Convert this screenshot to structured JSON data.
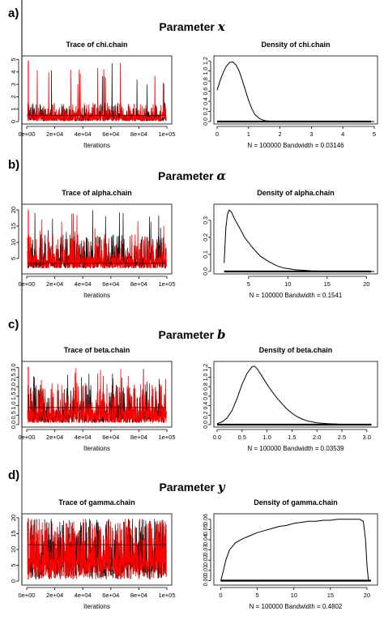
{
  "panels": [
    {
      "id": "a",
      "label": "a)",
      "title_prefix": "Parameter",
      "title_symbol": "x",
      "trace": {
        "title": "Trace of chi.chain",
        "xlabel": "Iterations",
        "xticks": [
          "0e+00",
          "2e+04",
          "4e+04",
          "6e+04",
          "8e+04",
          "1e+05"
        ],
        "yticks": [
          "0",
          "1",
          "2",
          "3",
          "4",
          "5"
        ],
        "ylim": [
          0,
          5.1
        ],
        "band_lo": 0.05,
        "band_hi": 1.55,
        "mean": 0.5,
        "spike": 4.9
      },
      "density": {
        "title": "Density of chi.chain",
        "note": "N = 100000   Bandwidth = 0.03146",
        "xticks": [
          "0",
          "1",
          "2",
          "3",
          "4",
          "5"
        ],
        "yticks": [
          "0.0",
          "0.2",
          "0.4",
          "0.6",
          "0.8",
          "1.0",
          "1.2"
        ],
        "xlim": [
          0,
          5
        ],
        "ylim": [
          0,
          1.25
        ],
        "xy": [
          [
            0,
            0.62
          ],
          [
            0.1,
            0.82
          ],
          [
            0.2,
            0.98
          ],
          [
            0.3,
            1.1
          ],
          [
            0.4,
            1.17
          ],
          [
            0.5,
            1.18
          ],
          [
            0.6,
            1.12
          ],
          [
            0.7,
            1.0
          ],
          [
            0.8,
            0.82
          ],
          [
            0.9,
            0.62
          ],
          [
            1.0,
            0.42
          ],
          [
            1.1,
            0.26
          ],
          [
            1.2,
            0.14
          ],
          [
            1.35,
            0.06
          ],
          [
            1.5,
            0.02
          ],
          [
            1.7,
            0.005
          ],
          [
            2.0,
            0.0
          ],
          [
            5.0,
            0.0
          ]
        ]
      }
    },
    {
      "id": "b",
      "label": "b)",
      "title_prefix": "Parameter",
      "title_symbol": "α",
      "trace": {
        "title": "Trace of alpha.chain",
        "xlabel": "Iterations",
        "xticks": [
          "0e+00",
          "2e+04",
          "4e+04",
          "6e+04",
          "8e+04",
          "1e+05"
        ],
        "yticks": [
          "5",
          "10",
          "15",
          "20"
        ],
        "ylim": [
          1,
          21
        ],
        "band_lo": 2,
        "band_hi": 12.5,
        "mean": 3.5,
        "spike": 20
      },
      "density": {
        "title": "Density of alpha.chain",
        "note": "N = 100000   Bandwidth = 0.1541",
        "xticks": [
          "5",
          "10",
          "15",
          "20"
        ],
        "yticks": [
          "0.0",
          "0.1",
          "0.2",
          "0.3"
        ],
        "xlim": [
          1,
          21
        ],
        "ylim": [
          0,
          0.38
        ],
        "xy": [
          [
            1.9,
            0.05
          ],
          [
            2.1,
            0.25
          ],
          [
            2.3,
            0.33
          ],
          [
            2.5,
            0.36
          ],
          [
            2.8,
            0.35
          ],
          [
            3.2,
            0.31
          ],
          [
            3.8,
            0.26
          ],
          [
            4.5,
            0.2
          ],
          [
            5.5,
            0.14
          ],
          [
            6.5,
            0.09
          ],
          [
            7.5,
            0.06
          ],
          [
            8.5,
            0.035
          ],
          [
            9.5,
            0.02
          ],
          [
            11,
            0.01
          ],
          [
            13,
            0.004
          ],
          [
            15,
            0.001
          ],
          [
            21,
            0.0
          ]
        ]
      }
    },
    {
      "id": "c",
      "label": "c)",
      "title_prefix": "Parameter",
      "title_symbol": "b",
      "trace": {
        "title": "Trace of beta.chain",
        "xlabel": "Iterations",
        "xticks": [
          "0e+00",
          "2e+04",
          "4e+04",
          "6e+04",
          "8e+04",
          "1e+05"
        ],
        "yticks": [
          "0.0",
          "0.5",
          "1.0",
          "1.5",
          "2.0",
          "2.5",
          "3.0"
        ],
        "ylim": [
          0,
          3.2
        ],
        "band_lo": 0.1,
        "band_hi": 2.2,
        "mean": 0.9,
        "spike": 3.05
      },
      "density": {
        "title": "Density of beta.chain",
        "note": "N = 100000   Bandwidth = 0.03539",
        "xticks": [
          "0.0",
          "0.5",
          "1.0",
          "1.5",
          "2.0",
          "2.5",
          "3.0"
        ],
        "yticks": [
          "0.0",
          "0.2",
          "0.4",
          "0.6",
          "0.8",
          "1.0",
          "1.2"
        ],
        "xlim": [
          0,
          3.15
        ],
        "ylim": [
          0,
          1.28
        ],
        "xy": [
          [
            0.0,
            0.02
          ],
          [
            0.1,
            0.06
          ],
          [
            0.2,
            0.14
          ],
          [
            0.3,
            0.3
          ],
          [
            0.4,
            0.55
          ],
          [
            0.5,
            0.85
          ],
          [
            0.6,
            1.08
          ],
          [
            0.7,
            1.22
          ],
          [
            0.75,
            1.23
          ],
          [
            0.8,
            1.18
          ],
          [
            0.9,
            1.02
          ],
          [
            1.0,
            0.85
          ],
          [
            1.1,
            0.7
          ],
          [
            1.2,
            0.56
          ],
          [
            1.3,
            0.44
          ],
          [
            1.4,
            0.33
          ],
          [
            1.5,
            0.24
          ],
          [
            1.6,
            0.17
          ],
          [
            1.7,
            0.12
          ],
          [
            1.8,
            0.08
          ],
          [
            2.0,
            0.04
          ],
          [
            2.2,
            0.02
          ],
          [
            2.5,
            0.007
          ],
          [
            3.1,
            0.0
          ]
        ]
      }
    },
    {
      "id": "d",
      "label": "d)",
      "title_prefix": "Parameter",
      "title_symbol": "y",
      "trace": {
        "title": "Trace of gamma.chain",
        "xlabel": "Iterations",
        "xticks": [
          "0e+00",
          "2e+04",
          "4e+04",
          "6e+04",
          "8e+04",
          "1e+05"
        ],
        "yticks": [
          "0",
          "5",
          "10",
          "15",
          "20"
        ],
        "ylim": [
          -0.5,
          20.5
        ],
        "band_lo": 0.5,
        "band_hi": 19.8,
        "mean": 11.5,
        "spike": 19.9
      },
      "density": {
        "title": "Density of gamma.chain",
        "note": "N = 100000   Bandwidth = 0.4802",
        "xticks": [
          "0",
          "5",
          "10",
          "15",
          "20"
        ],
        "yticks": [
          "0.00",
          "0.01",
          "0.02",
          "0.03",
          "0.04",
          "0.05",
          "0.06"
        ],
        "xlim": [
          -0.5,
          21
        ],
        "ylim": [
          -0.002,
          0.063
        ],
        "xy": [
          [
            0.0,
            0.0
          ],
          [
            0.3,
            0.008
          ],
          [
            0.7,
            0.02
          ],
          [
            1.2,
            0.03
          ],
          [
            2,
            0.037
          ],
          [
            3,
            0.041
          ],
          [
            4,
            0.044
          ],
          [
            5,
            0.047
          ],
          [
            6,
            0.049
          ],
          [
            7,
            0.051
          ],
          [
            8,
            0.053
          ],
          [
            9,
            0.054
          ],
          [
            10,
            0.056
          ],
          [
            11,
            0.057
          ],
          [
            12,
            0.058
          ],
          [
            13,
            0.058
          ],
          [
            14,
            0.059
          ],
          [
            15,
            0.059
          ],
          [
            16,
            0.06
          ],
          [
            17,
            0.06
          ],
          [
            18,
            0.06
          ],
          [
            19,
            0.06
          ],
          [
            19.5,
            0.058
          ],
          [
            19.8,
            0.04
          ],
          [
            20,
            0.015
          ],
          [
            20.2,
            0.0
          ]
        ]
      }
    }
  ]
}
